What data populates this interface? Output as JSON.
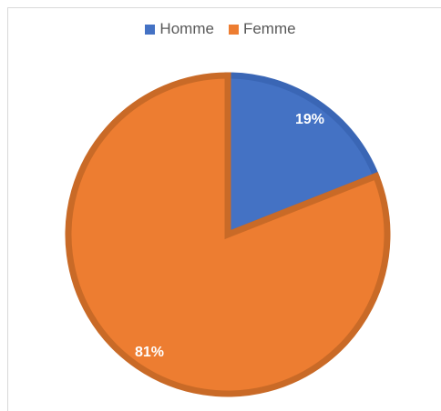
{
  "chart_data": {
    "type": "pie",
    "categories": [
      "Homme",
      "Femme"
    ],
    "values": [
      19,
      81
    ],
    "labels": [
      "19%",
      "81%"
    ],
    "colors": [
      "#4472C4",
      "#ED7D31"
    ],
    "border_colors": [
      "#3A66B5",
      "#C96A27"
    ],
    "legend_position": "top",
    "start_angle_deg": 0,
    "direction": "clockwise"
  }
}
